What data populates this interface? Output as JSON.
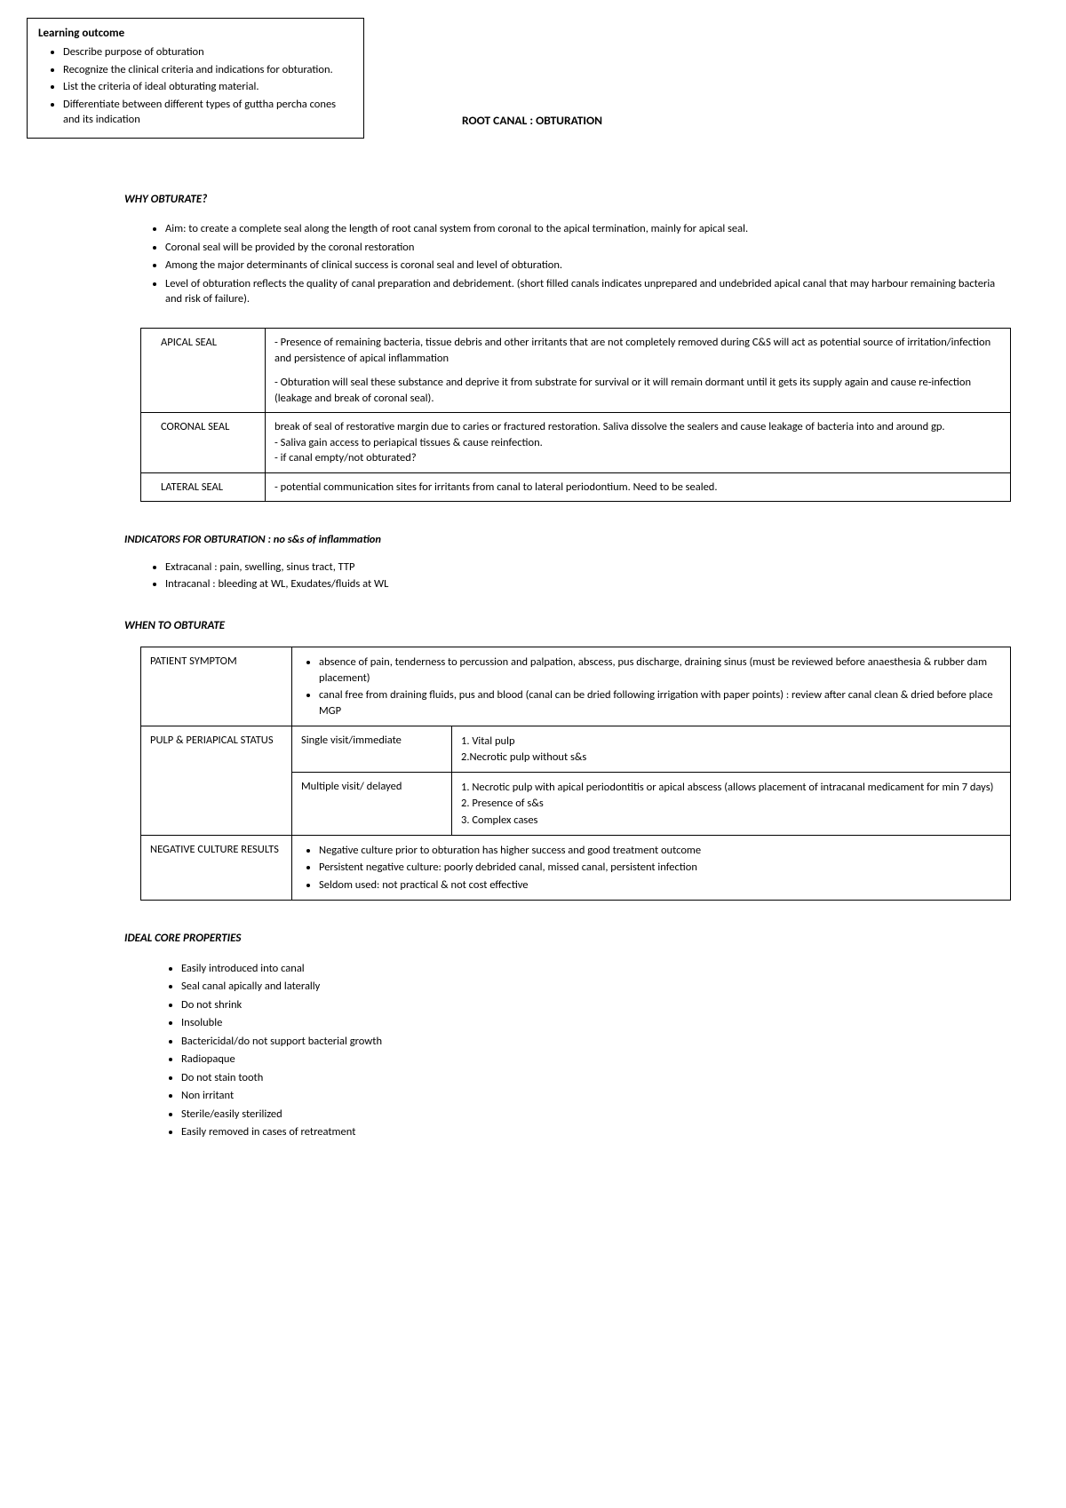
{
  "learning_outcome": {
    "title": "Learning outcome",
    "items": [
      "Describe purpose of obturation",
      "Recognize the clinical criteria and indications for obturation.",
      "List the criteria of ideal obturating material.",
      "Differentiate between different types of guttha percha cones and its indication"
    ]
  },
  "doc_title": "ROOT CANAL : OBTURATION",
  "why": {
    "heading": "WHY OBTURATE?",
    "bullets": [
      "Aim: to create a complete seal along the length of root canal system from coronal to the apical termination, mainly for apical seal.",
      "Coronal seal will be provided by the coronal restoration",
      "Among the major determinants of clinical success is coronal seal and level of obturation.",
      "Level of obturation reflects the quality of canal preparation and debridement. (short filled canals indicates unprepared and undebrided apical canal that may harbour remaining bacteria and risk of failure)."
    ]
  },
  "seal_table": {
    "rows": [
      {
        "label": "APICAL SEAL",
        "paras": [
          "- Presence of remaining bacteria, tissue debris and other irritants that are not completely removed  during C&S will act as potential source of irritation/infection and persistence of apical inflammation",
          "- Obturation will seal these substance and deprive it from substrate for survival or it will remain dormant until it gets its supply again and cause re-infection (leakage and break of coronal seal)."
        ]
      },
      {
        "label": "CORONAL SEAL",
        "paras": [
          "break of seal of restorative margin due to caries or fractured restoration. Saliva dissolve the sealers and cause leakage of bacteria into and around gp.",
          "- Saliva gain access to periapical tissues & cause reinfection.",
          "- if canal empty/not obturated?"
        ]
      },
      {
        "label": "LATERAL SEAL",
        "paras": [
          "- potential communication sites for irritants from canal to lateral periodontium. Need to be sealed."
        ]
      }
    ]
  },
  "indicators": {
    "heading": "INDICATORS FOR OBTURATION : no s&s of inflammation",
    "items": [
      "Extracanal : pain, swelling, sinus tract, TTP",
      "Intracanal : bleeding at WL, Exudates/fluids at WL"
    ]
  },
  "when": {
    "heading": "WHEN TO OBTURATE",
    "row1": {
      "label": "PATIENT SYMPTOM",
      "bullets": [
        "absence of pain, tenderness to percussion and palpation, abscess, pus discharge, draining sinus (must be reviewed before anaesthesia & rubber dam placement)",
        "canal free from draining fluids, pus and blood (canal can be dried following irrigation with paper points) : review after canal clean & dried before place MGP"
      ]
    },
    "row2": {
      "label": "PULP & PERIAPICAL STATUS",
      "sub1_label": "Single visit/immediate",
      "sub1_lines": [
        "1. Vital pulp",
        "2.Necrotic pulp without s&s"
      ],
      "sub2_label": "Multiple visit/ delayed",
      "sub2_lines": [
        "1. Necrotic pulp with apical periodontitis or apical abscess (allows placement of intracanal medicament for min 7 days)",
        "2. Presence of s&s",
        "3. Complex cases"
      ]
    },
    "row3": {
      "label": "NEGATIVE CULTURE RESULTS",
      "bullets": [
        "Negative culture prior to obturation has higher success and good treatment outcome",
        "Persistent negative culture: poorly debrided canal, missed canal, persistent infection",
        "Seldom used: not practical & not cost effective"
      ]
    }
  },
  "core": {
    "heading": "IDEAL CORE PROPERTIES",
    "items": [
      "Easily introduced into canal",
      "Seal canal apically and laterally",
      "Do not shrink",
      "Insoluble",
      "Bactericidal/do not support bacterial growth",
      "Radiopaque",
      "Do not stain tooth",
      "Non irritant",
      "Sterile/easily sterilized",
      "Easily removed in cases of retreatment"
    ]
  }
}
